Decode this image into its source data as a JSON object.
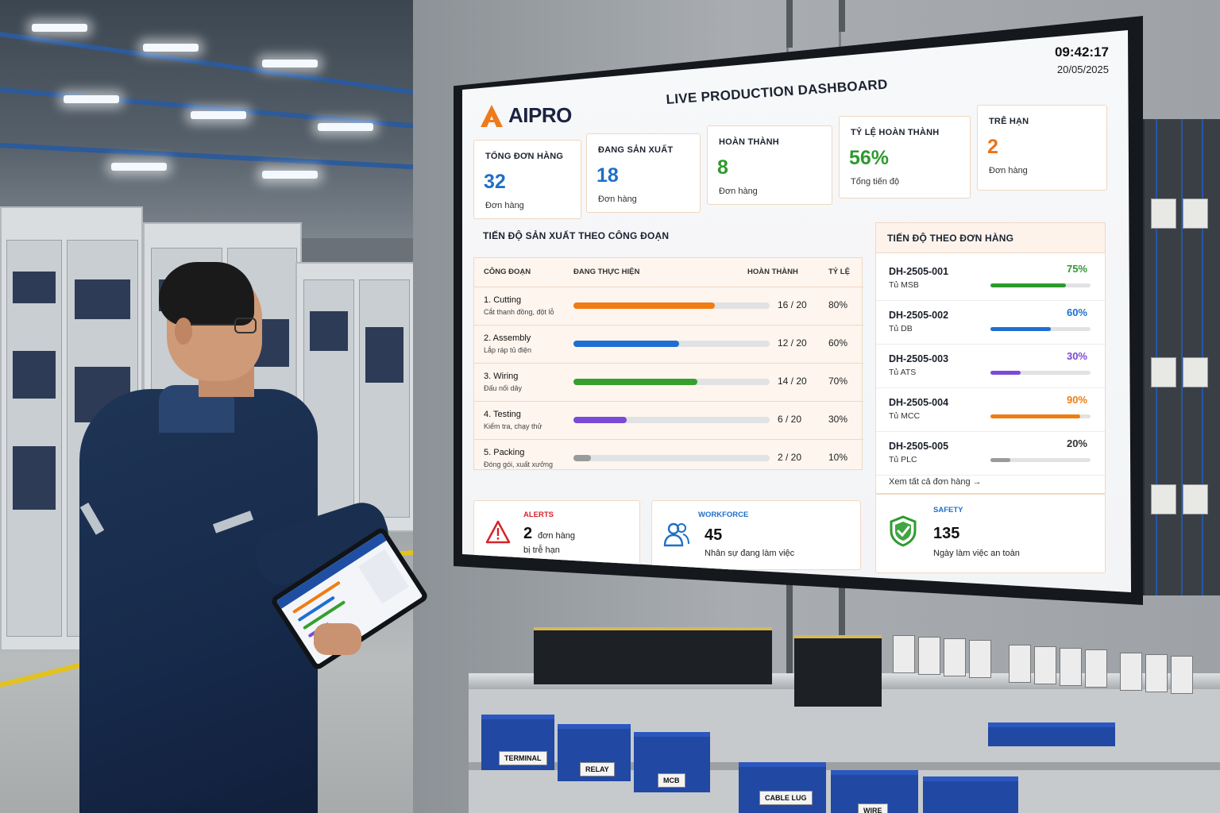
{
  "dashboard": {
    "title": "LIVE PRODUCTION DASHBOARD",
    "brand": "AIPRO",
    "time": "09:42:17",
    "date": "20/05/2025"
  },
  "kpis": [
    {
      "label": "TỔNG ĐƠN HÀNG",
      "value": "32",
      "unit": "Đơn hàng",
      "color": "#1f6fc8"
    },
    {
      "label": "ĐANG SẢN XUẤT",
      "value": "18",
      "unit": "Đơn hàng",
      "color": "#1f6fc8"
    },
    {
      "label": "HOÀN THÀNH",
      "value": "8",
      "unit": "Đơn hàng",
      "color": "#2e9a2e"
    },
    {
      "label": "TỶ LỆ HOÀN THÀNH",
      "value": "56%",
      "unit": "Tổng tiến độ",
      "color": "#2e9a2e"
    },
    {
      "label": "TRỄ HẠN",
      "value": "2",
      "unit": "Đơn hàng",
      "color": "#e9731c"
    }
  ],
  "stages": {
    "title": "TIẾN ĐỘ SẢN XUẤT THEO CÔNG ĐOẠN",
    "headers": {
      "stage": "CÔNG ĐOẠN",
      "in_progress": "ĐANG THỰC HIỆN",
      "done": "HOÀN THÀNH",
      "rate": "TỶ LỆ"
    },
    "rows": [
      {
        "name": "1. Cutting",
        "sub": "Cắt thanh đồng, đột lỗ",
        "count": "16 / 20",
        "pct": "80%",
        "value": 0.8,
        "color": "#f07d12"
      },
      {
        "name": "2. Assembly",
        "sub": "Lắp ráp tủ điện",
        "count": "12 / 20",
        "pct": "60%",
        "value": 0.6,
        "color": "#1f6fd2"
      },
      {
        "name": "3. Wiring",
        "sub": "Đấu nối dây",
        "count": "14 / 20",
        "pct": "70%",
        "value": 0.7,
        "color": "#35a02d"
      },
      {
        "name": "4. Testing",
        "sub": "Kiểm tra, chạy thử",
        "count": "6 / 20",
        "pct": "30%",
        "value": 0.3,
        "color": "#7a4ad8"
      },
      {
        "name": "5. Packing",
        "sub": "Đóng gói, xuất xưởng",
        "count": "2 / 20",
        "pct": "10%",
        "value": 0.1,
        "color": "#9a9a9a"
      }
    ]
  },
  "orders": {
    "title": "TIẾN ĐỘ THEO ĐƠN HÀNG",
    "items": [
      {
        "id": "DH-2505-001",
        "sub": "Tủ MSB",
        "pct": "75%",
        "value": 0.75,
        "color": "#2e9a2e"
      },
      {
        "id": "DH-2505-002",
        "sub": "Tủ DB",
        "pct": "60%",
        "value": 0.6,
        "color": "#1f6fd2"
      },
      {
        "id": "DH-2505-003",
        "sub": "Tủ ATS",
        "pct": "30%",
        "value": 0.3,
        "color": "#7a4ad8"
      },
      {
        "id": "DH-2505-004",
        "sub": "Tủ MCC",
        "pct": "90%",
        "value": 0.9,
        "color": "#f07d12"
      },
      {
        "id": "DH-2505-005",
        "sub": "Tủ PLC",
        "pct": "20%",
        "value": 0.2,
        "color": "#333333"
      }
    ],
    "view_all": "Xem tất cả đơn hàng →"
  },
  "alerts": {
    "label": "ALERTS",
    "number": "2",
    "line1": "đơn hàng",
    "line2": "bị trễ hạn",
    "color": "#d4242a"
  },
  "workforce": {
    "label": "WORKFORCE",
    "number": "45",
    "text": "Nhân sự đang làm việc",
    "color": "#1f6fc8"
  },
  "safety": {
    "label": "SAFETY",
    "number": "135",
    "text": "Ngày làm việc an toàn",
    "color": "#1f6fc8",
    "icon_color": "#2e9a2e"
  },
  "bins": [
    "TERMINAL",
    "RELAY",
    "MCB",
    "CABLE LUG",
    "WIRE"
  ]
}
